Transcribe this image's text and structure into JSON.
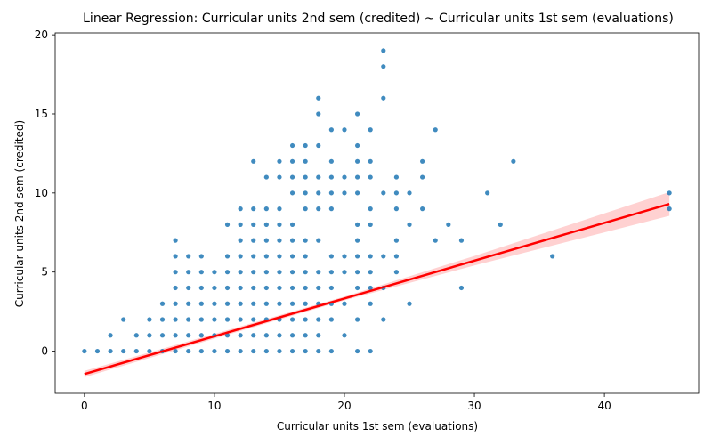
{
  "chart_data": {
    "type": "scatter",
    "title": "Linear Regression: Curricular units 2nd sem (credited) ~ Curricular units 1st sem (evaluations)",
    "xlabel": "Curricular units 1st sem (evaluations)",
    "ylabel": "Curricular units 2nd sem (credited)",
    "xlim": [
      -2.25,
      47.25
    ],
    "ylim": [
      -2.67,
      20.12
    ],
    "xticks": [
      0,
      10,
      20,
      30,
      40
    ],
    "yticks": [
      0,
      5,
      10,
      15,
      20
    ],
    "grid": false,
    "colors": {
      "points": "#1f77b4",
      "line": "#ff0000",
      "band": "#ff9999"
    },
    "points": [
      [
        0,
        0
      ],
      [
        1,
        0
      ],
      [
        2,
        0
      ],
      [
        2,
        1
      ],
      [
        3,
        0
      ],
      [
        3,
        2
      ],
      [
        4,
        0
      ],
      [
        4,
        1
      ],
      [
        5,
        0
      ],
      [
        5,
        1
      ],
      [
        5,
        2
      ],
      [
        6,
        0
      ],
      [
        6,
        1
      ],
      [
        6,
        2
      ],
      [
        6,
        3
      ],
      [
        7,
        0
      ],
      [
        7,
        1
      ],
      [
        7,
        2
      ],
      [
        7,
        3
      ],
      [
        7,
        4
      ],
      [
        7,
        5
      ],
      [
        7,
        6
      ],
      [
        7,
        7
      ],
      [
        8,
        0
      ],
      [
        8,
        1
      ],
      [
        8,
        2
      ],
      [
        8,
        3
      ],
      [
        8,
        4
      ],
      [
        8,
        5
      ],
      [
        8,
        6
      ],
      [
        9,
        0
      ],
      [
        9,
        1
      ],
      [
        9,
        2
      ],
      [
        9,
        3
      ],
      [
        9,
        4
      ],
      [
        9,
        5
      ],
      [
        9,
        6
      ],
      [
        10,
        0
      ],
      [
        10,
        1
      ],
      [
        10,
        2
      ],
      [
        10,
        3
      ],
      [
        10,
        4
      ],
      [
        10,
        5
      ],
      [
        11,
        0
      ],
      [
        11,
        1
      ],
      [
        11,
        2
      ],
      [
        11,
        3
      ],
      [
        11,
        4
      ],
      [
        11,
        5
      ],
      [
        11,
        6
      ],
      [
        11,
        8
      ],
      [
        12,
        0
      ],
      [
        12,
        1
      ],
      [
        12,
        2
      ],
      [
        12,
        3
      ],
      [
        12,
        4
      ],
      [
        12,
        5
      ],
      [
        12,
        6
      ],
      [
        12,
        7
      ],
      [
        12,
        8
      ],
      [
        12,
        9
      ],
      [
        13,
        0
      ],
      [
        13,
        1
      ],
      [
        13,
        2
      ],
      [
        13,
        3
      ],
      [
        13,
        4
      ],
      [
        13,
        5
      ],
      [
        13,
        6
      ],
      [
        13,
        7
      ],
      [
        13,
        8
      ],
      [
        13,
        9
      ],
      [
        13,
        12
      ],
      [
        14,
        0
      ],
      [
        14,
        1
      ],
      [
        14,
        2
      ],
      [
        14,
        3
      ],
      [
        14,
        4
      ],
      [
        14,
        5
      ],
      [
        14,
        6
      ],
      [
        14,
        7
      ],
      [
        14,
        8
      ],
      [
        14,
        9
      ],
      [
        14,
        11
      ],
      [
        15,
        0
      ],
      [
        15,
        1
      ],
      [
        15,
        2
      ],
      [
        15,
        3
      ],
      [
        15,
        4
      ],
      [
        15,
        5
      ],
      [
        15,
        6
      ],
      [
        15,
        7
      ],
      [
        15,
        8
      ],
      [
        15,
        9
      ],
      [
        15,
        11
      ],
      [
        15,
        12
      ],
      [
        16,
        0
      ],
      [
        16,
        1
      ],
      [
        16,
        2
      ],
      [
        16,
        3
      ],
      [
        16,
        4
      ],
      [
        16,
        5
      ],
      [
        16,
        6
      ],
      [
        16,
        7
      ],
      [
        16,
        8
      ],
      [
        16,
        10
      ],
      [
        16,
        11
      ],
      [
        16,
        12
      ],
      [
        16,
        13
      ],
      [
        17,
        0
      ],
      [
        17,
        1
      ],
      [
        17,
        2
      ],
      [
        17,
        3
      ],
      [
        17,
        4
      ],
      [
        17,
        5
      ],
      [
        17,
        6
      ],
      [
        17,
        7
      ],
      [
        17,
        9
      ],
      [
        17,
        10
      ],
      [
        17,
        11
      ],
      [
        17,
        12
      ],
      [
        17,
        13
      ],
      [
        18,
        0
      ],
      [
        18,
        1
      ],
      [
        18,
        2
      ],
      [
        18,
        3
      ],
      [
        18,
        4
      ],
      [
        18,
        5
      ],
      [
        18,
        7
      ],
      [
        18,
        9
      ],
      [
        18,
        10
      ],
      [
        18,
        11
      ],
      [
        18,
        13
      ],
      [
        18,
        15
      ],
      [
        18,
        16
      ],
      [
        19,
        0
      ],
      [
        19,
        2
      ],
      [
        19,
        3
      ],
      [
        19,
        4
      ],
      [
        19,
        5
      ],
      [
        19,
        6
      ],
      [
        19,
        9
      ],
      [
        19,
        10
      ],
      [
        19,
        11
      ],
      [
        19,
        12
      ],
      [
        19,
        14
      ],
      [
        20,
        1
      ],
      [
        20,
        3
      ],
      [
        20,
        5
      ],
      [
        20,
        6
      ],
      [
        20,
        10
      ],
      [
        20,
        11
      ],
      [
        20,
        14
      ],
      [
        21,
        0
      ],
      [
        21,
        2
      ],
      [
        21,
        4
      ],
      [
        21,
        5
      ],
      [
        21,
        6
      ],
      [
        21,
        7
      ],
      [
        21,
        8
      ],
      [
        21,
        10
      ],
      [
        21,
        11
      ],
      [
        21,
        12
      ],
      [
        21,
        13
      ],
      [
        21,
        15
      ],
      [
        22,
        0
      ],
      [
        22,
        3
      ],
      [
        22,
        4
      ],
      [
        22,
        5
      ],
      [
        22,
        6
      ],
      [
        22,
        8
      ],
      [
        22,
        9
      ],
      [
        22,
        11
      ],
      [
        22,
        12
      ],
      [
        22,
        14
      ],
      [
        23,
        2
      ],
      [
        23,
        4
      ],
      [
        23,
        6
      ],
      [
        23,
        10
      ],
      [
        23,
        16
      ],
      [
        23,
        18
      ],
      [
        23,
        19
      ],
      [
        24,
        5
      ],
      [
        24,
        6
      ],
      [
        24,
        7
      ],
      [
        24,
        9
      ],
      [
        24,
        10
      ],
      [
        24,
        11
      ],
      [
        25,
        3
      ],
      [
        25,
        8
      ],
      [
        25,
        10
      ],
      [
        26,
        9
      ],
      [
        26,
        11
      ],
      [
        26,
        12
      ],
      [
        27,
        7
      ],
      [
        27,
        14
      ],
      [
        28,
        8
      ],
      [
        29,
        4
      ],
      [
        29,
        7
      ],
      [
        31,
        10
      ],
      [
        32,
        8
      ],
      [
        33,
        12
      ],
      [
        36,
        6
      ],
      [
        45,
        9
      ],
      [
        45,
        10
      ]
    ],
    "regression": {
      "intercept": -1.45,
      "slope": 0.239,
      "x_range": [
        0,
        45
      ]
    },
    "confidence_band": {
      "x": [
        0,
        10,
        20,
        30,
        40,
        45
      ],
      "half_width": [
        0.2,
        0.15,
        0.12,
        0.3,
        0.6,
        0.75
      ]
    }
  }
}
